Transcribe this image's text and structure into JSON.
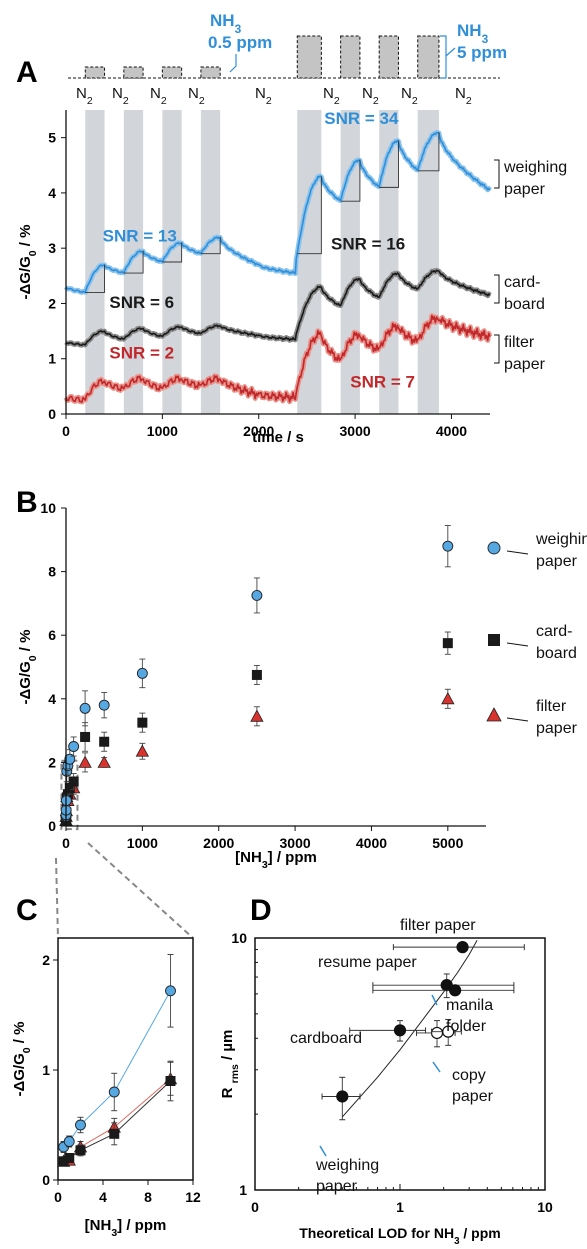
{
  "colors": {
    "blue": "#2f8fd8",
    "blue_light": "#8cc4ee",
    "black": "#1a1a1a",
    "red": "#c0282c",
    "red_light": "#e9928a",
    "pulse_fill": "#d2d5d9",
    "marker_blue": "#56a8e2",
    "marker_red": "#d9332e",
    "axis": "#111111"
  },
  "panel_a": {
    "letter": "A",
    "pulse_labels": {
      "small_conc": "0.5 ppm",
      "large_conc": "5 ppm",
      "gas": "NH",
      "gas_sub": "3",
      "carrier": "N",
      "carrier_sub": "2"
    },
    "chart_data": {
      "type": "line",
      "xlabel": "time / s",
      "ylabel": "-ΔG/G0 / %",
      "xlim": [
        0,
        4400
      ],
      "ylim": [
        0,
        5.5
      ],
      "x_ticks": [
        0,
        1000,
        2000,
        3000,
        4000
      ],
      "y_ticks": [
        0,
        1,
        2,
        3,
        4,
        5
      ],
      "exposure_windows_s": [
        [
          200,
          400
        ],
        [
          600,
          800
        ],
        [
          1000,
          1200
        ],
        [
          1400,
          1600
        ],
        [
          2400,
          2650
        ],
        [
          2850,
          3050
        ],
        [
          3250,
          3450
        ],
        [
          3650,
          3870
        ]
      ],
      "series": [
        {
          "name": "weighing paper",
          "color": "blue",
          "points": [
            [
              0,
              2.3
            ],
            [
              200,
              2.2
            ],
            [
              400,
              2.7
            ],
            [
              600,
              2.55
            ],
            [
              800,
              2.95
            ],
            [
              1000,
              2.75
            ],
            [
              1200,
              3.1
            ],
            [
              1400,
              2.9
            ],
            [
              1600,
              3.2
            ],
            [
              2000,
              2.7
            ],
            [
              2380,
              2.55
            ],
            [
              2400,
              2.9
            ],
            [
              2650,
              4.3
            ],
            [
              2850,
              3.85
            ],
            [
              3050,
              4.6
            ],
            [
              3250,
              4.1
            ],
            [
              3450,
              4.95
            ],
            [
              3650,
              4.4
            ],
            [
              3870,
              5.1
            ],
            [
              4400,
              4.05
            ]
          ]
        },
        {
          "name": "cardboard",
          "color": "black",
          "points": [
            [
              0,
              1.3
            ],
            [
              200,
              1.25
            ],
            [
              400,
              1.5
            ],
            [
              600,
              1.35
            ],
            [
              800,
              1.55
            ],
            [
              1000,
              1.4
            ],
            [
              1200,
              1.58
            ],
            [
              1400,
              1.45
            ],
            [
              1600,
              1.6
            ],
            [
              2000,
              1.42
            ],
            [
              2380,
              1.35
            ],
            [
              2400,
              1.5
            ],
            [
              2650,
              2.3
            ],
            [
              2850,
              1.95
            ],
            [
              3050,
              2.45
            ],
            [
              3250,
              2.1
            ],
            [
              3450,
              2.55
            ],
            [
              3650,
              2.25
            ],
            [
              3870,
              2.6
            ],
            [
              4400,
              2.15
            ]
          ]
        },
        {
          "name": "filter paper",
          "color": "red",
          "points": [
            [
              0,
              0.3
            ],
            [
              200,
              0.25
            ],
            [
              400,
              0.6
            ],
            [
              600,
              0.45
            ],
            [
              800,
              0.65
            ],
            [
              1000,
              0.45
            ],
            [
              1200,
              0.65
            ],
            [
              1400,
              0.5
            ],
            [
              1600,
              0.65
            ],
            [
              2000,
              0.35
            ],
            [
              2380,
              0.3
            ],
            [
              2400,
              0.45
            ],
            [
              2650,
              1.45
            ],
            [
              2850,
              0.95
            ],
            [
              3050,
              1.45
            ],
            [
              3250,
              1.15
            ],
            [
              3450,
              1.6
            ],
            [
              3650,
              1.3
            ],
            [
              3870,
              1.75
            ],
            [
              4400,
              1.4
            ]
          ]
        }
      ],
      "annotations": [
        {
          "text": "SNR = 13",
          "color": "blue",
          "x": 380,
          "y": 3.12
        },
        {
          "text": "SNR = 34",
          "color": "blue",
          "x": 2680,
          "y": 5.25
        },
        {
          "text": "SNR = 16",
          "color": "black",
          "x": 2750,
          "y": 2.98
        },
        {
          "text": "SNR = 6",
          "color": "black",
          "x": 450,
          "y": 1.92
        },
        {
          "text": "SNR = 2",
          "color": "red",
          "x": 450,
          "y": 1.0
        },
        {
          "text": "SNR = 7",
          "color": "red",
          "x": 2950,
          "y": 0.48
        }
      ],
      "series_labels": [
        {
          "lines": [
            "weighing",
            "paper"
          ]
        },
        {
          "lines": [
            "card-",
            "board"
          ]
        },
        {
          "lines": [
            "filter",
            "paper"
          ]
        }
      ]
    }
  },
  "panel_b": {
    "letter": "B",
    "chart_data": {
      "type": "scatter",
      "xlabel": "[NH3] / ppm",
      "ylabel": "-ΔG/G0 / %",
      "xlim": [
        0,
        5500
      ],
      "ylim": [
        0,
        10
      ],
      "x_ticks": [
        0,
        1000,
        2000,
        3000,
        4000,
        5000
      ],
      "y_ticks": [
        0,
        2,
        4,
        6,
        8,
        10
      ],
      "series": [
        {
          "name": "weighing paper",
          "marker": "circle",
          "color": "marker_blue",
          "points": [
            [
              0.5,
              0.3,
              0.05
            ],
            [
              1,
              0.35,
              0.05
            ],
            [
              2,
              0.5,
              0.07
            ],
            [
              5,
              0.8,
              0.17
            ],
            [
              10,
              1.72,
              0.33
            ],
            [
              25,
              1.9,
              0.3
            ],
            [
              50,
              2.1,
              0.3
            ],
            [
              100,
              2.5,
              0.3
            ],
            [
              250,
              3.7,
              0.55
            ],
            [
              500,
              3.8,
              0.4
            ],
            [
              1000,
              4.8,
              0.45
            ],
            [
              2500,
              7.25,
              0.55
            ],
            [
              5000,
              8.8,
              0.65
            ]
          ]
        },
        {
          "name": "cardboard",
          "marker": "square",
          "color": "black",
          "points": [
            [
              0.5,
              0.17,
              0.03
            ],
            [
              1,
              0.2,
              0.04
            ],
            [
              2,
              0.27,
              0.05
            ],
            [
              5,
              0.42,
              0.1
            ],
            [
              10,
              0.9,
              0.18
            ],
            [
              25,
              1.0,
              0.2
            ],
            [
              50,
              1.2,
              0.2
            ],
            [
              100,
              1.4,
              0.25
            ],
            [
              250,
              2.8,
              0.45
            ],
            [
              500,
              2.65,
              0.3
            ],
            [
              1000,
              3.25,
              0.3
            ],
            [
              2500,
              4.75,
              0.3
            ],
            [
              5000,
              5.75,
              0.35
            ]
          ]
        },
        {
          "name": "filter paper",
          "marker": "triangle",
          "color": "marker_red",
          "points": [
            [
              0.5,
              0.17,
              0.03
            ],
            [
              1,
              0.18,
              0.03
            ],
            [
              2,
              0.3,
              0.05
            ],
            [
              5,
              0.48,
              0.08
            ],
            [
              10,
              0.92,
              0.15
            ],
            [
              25,
              0.8,
              0.15
            ],
            [
              50,
              1.0,
              0.15
            ],
            [
              100,
              1.2,
              0.2
            ],
            [
              250,
              2.0,
              0.3
            ],
            [
              500,
              2.0,
              0.15
            ],
            [
              1000,
              2.35,
              0.25
            ],
            [
              2500,
              3.45,
              0.3
            ],
            [
              5000,
              4.0,
              0.3
            ]
          ]
        }
      ],
      "series_labels": [
        {
          "lines": [
            "weighing",
            "paper"
          ]
        },
        {
          "lines": [
            "card-",
            "board"
          ]
        },
        {
          "lines": [
            "filter",
            "paper"
          ]
        }
      ]
    }
  },
  "panel_c": {
    "letter": "C",
    "chart_data": {
      "type": "scatter",
      "xlabel": "[NH3] / ppm",
      "ylabel": "-ΔG/G0 / %",
      "xlim": [
        0,
        12
      ],
      "ylim": [
        0,
        2.2
      ],
      "x_ticks": [
        0,
        4,
        8,
        12
      ],
      "y_ticks": [
        0,
        1,
        2
      ],
      "series": [
        {
          "name": "weighing paper",
          "marker": "circle",
          "color": "marker_blue",
          "fit_line": true,
          "points": [
            [
              0.5,
              0.3,
              0.05
            ],
            [
              1,
              0.35,
              0.05
            ],
            [
              2,
              0.5,
              0.07
            ],
            [
              5,
              0.8,
              0.17
            ],
            [
              10,
              1.72,
              0.33
            ]
          ]
        },
        {
          "name": "cardboard",
          "marker": "square",
          "color": "black",
          "fit_line": true,
          "points": [
            [
              0.5,
              0.17,
              0.03
            ],
            [
              1,
              0.2,
              0.04
            ],
            [
              2,
              0.27,
              0.05
            ],
            [
              5,
              0.42,
              0.1
            ],
            [
              10,
              0.9,
              0.18
            ]
          ]
        },
        {
          "name": "filter paper",
          "marker": "triangle",
          "color": "marker_red",
          "fit_line": true,
          "points": [
            [
              0.5,
              0.17,
              0.03
            ],
            [
              1,
              0.18,
              0.03
            ],
            [
              2,
              0.3,
              0.05
            ],
            [
              5,
              0.48,
              0.08
            ],
            [
              10,
              0.92,
              0.15
            ]
          ]
        }
      ]
    }
  },
  "panel_d": {
    "letter": "D",
    "chart_data": {
      "type": "scatter",
      "xlabel": "Theoretical LOD for NH3 / ppm",
      "ylabel": "R rms / µm",
      "x_scale": "log",
      "y_scale": "log",
      "xlim": [
        0.1,
        10
      ],
      "ylim": [
        1,
        10
      ],
      "x_ticks": [
        0.1,
        1,
        10
      ],
      "x_tick_labels": [
        "0",
        "1",
        "10"
      ],
      "y_ticks": [
        1,
        10
      ],
      "points": [
        {
          "label": "filter paper",
          "x": 2.7,
          "y": 9.2,
          "xerr_lo": 1.8,
          "xerr_hi": 4.5,
          "yerr": 0,
          "filled": true
        },
        {
          "label": "resume paper",
          "x": 2.1,
          "y": 6.5,
          "xerr_lo": 1.45,
          "xerr_hi": 4.0,
          "yerr": 0.7,
          "filled": true
        },
        {
          "label": "manila folder",
          "x": 2.4,
          "y": 6.2,
          "xerr_lo": 1.75,
          "xerr_hi": 3.7,
          "yerr": 0,
          "filled": true
        },
        {
          "label": "cardboard",
          "x": 1.0,
          "y": 4.3,
          "xerr_lo": 0.55,
          "xerr_hi": 0.5,
          "yerr": 0.4,
          "filled": true
        },
        {
          "label": "copy paper",
          "x": 1.8,
          "y": 4.2,
          "xerr_lo": 0.5,
          "xerr_hi": 0.6,
          "yerr": 0.5,
          "filled": false
        },
        {
          "label": "copy paper",
          "x": 2.15,
          "y": 4.25,
          "xerr_lo": 0.5,
          "xerr_hi": 0.5,
          "yerr": 0.5,
          "filled": false
        },
        {
          "label": "weighing paper",
          "x": 0.4,
          "y": 2.35,
          "xerr_lo": 0.11,
          "xerr_hi": 0.13,
          "yerr": 0.45,
          "filled": true
        }
      ],
      "fit_curve": [
        [
          0.4,
          1.95
        ],
        [
          0.7,
          2.8
        ],
        [
          1.0,
          3.6
        ],
        [
          1.5,
          4.9
        ],
        [
          2.0,
          6.1
        ],
        [
          2.5,
          7.3
        ],
        [
          3.0,
          8.6
        ],
        [
          3.4,
          9.8
        ]
      ],
      "labels": [
        {
          "lines": [
            "filter paper"
          ]
        },
        {
          "lines": [
            "resume paper"
          ]
        },
        {
          "lines": [
            "manila",
            "folder"
          ]
        },
        {
          "lines": [
            "cardboard"
          ]
        },
        {
          "lines": [
            "copy",
            "paper"
          ]
        },
        {
          "lines": [
            "weighing",
            "paper"
          ]
        }
      ]
    }
  }
}
